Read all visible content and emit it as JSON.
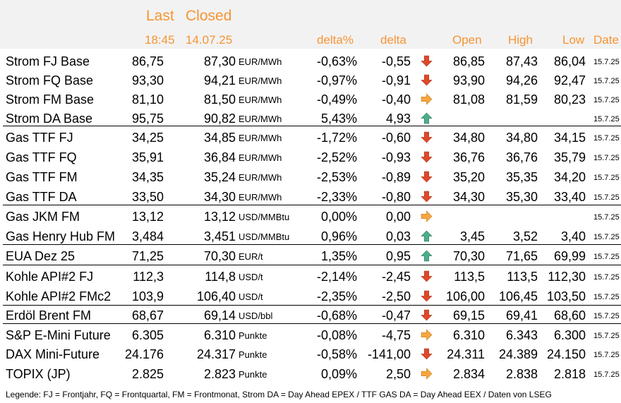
{
  "header": {
    "last_label": "Last",
    "closed_label": "Closed",
    "last_time": "18:45",
    "closed_date": "14.07.25",
    "delta_pct": "delta%",
    "delta": "delta",
    "open": "Open",
    "high": "High",
    "low": "Low",
    "date": "Date"
  },
  "colors": {
    "header": "#f79433",
    "down": "#e0482a",
    "side": "#f7a640",
    "up": "#4caf8a"
  },
  "rows": [
    {
      "name": "Strom FJ Base",
      "last": "86,75",
      "closed": "87,30",
      "unit": "EUR/MWh",
      "dpct": "-0,63%",
      "delta": "-0,55",
      "trend": "down",
      "open": "86,85",
      "high": "87,43",
      "low": "86,04",
      "date": "15.7.25"
    },
    {
      "name": "Strom FQ Base",
      "last": "93,30",
      "closed": "94,21",
      "unit": "EUR/MWh",
      "dpct": "-0,97%",
      "delta": "-0,91",
      "trend": "down",
      "open": "93,90",
      "high": "94,26",
      "low": "92,47",
      "date": "15.7.25"
    },
    {
      "name": "Strom FM Base",
      "last": "81,10",
      "closed": "81,50",
      "unit": "EUR/MWh",
      "dpct": "-0,49%",
      "delta": "-0,40",
      "trend": "side",
      "open": "81,08",
      "high": "81,59",
      "low": "80,23",
      "date": "15.7.25"
    },
    {
      "name": "Strom DA Base",
      "last": "95,75",
      "closed": "90,82",
      "unit": "EUR/MWh",
      "dpct": "5,43%",
      "delta": "4,93",
      "trend": "up",
      "open": "",
      "high": "",
      "low": "",
      "date": "15.7.25"
    },
    {
      "name": "Gas TTF FJ",
      "last": "34,25",
      "closed": "34,85",
      "unit": "EUR/MWh",
      "dpct": "-1,72%",
      "delta": "-0,60",
      "trend": "down",
      "open": "34,80",
      "high": "34,80",
      "low": "34,15",
      "date": "15.7.25"
    },
    {
      "name": "Gas TTF FQ",
      "last": "35,91",
      "closed": "36,84",
      "unit": "EUR/MWh",
      "dpct": "-2,52%",
      "delta": "-0,93",
      "trend": "down",
      "open": "36,76",
      "high": "36,76",
      "low": "35,79",
      "date": "15.7.25"
    },
    {
      "name": "Gas TTF FM",
      "last": "34,35",
      "closed": "35,24",
      "unit": "EUR/MWh",
      "dpct": "-2,53%",
      "delta": "-0,89",
      "trend": "down",
      "open": "35,20",
      "high": "35,35",
      "low": "34,20",
      "date": "15.7.25"
    },
    {
      "name": "Gas TTF DA",
      "last": "33,50",
      "closed": "34,30",
      "unit": "EUR/MWh",
      "dpct": "-2,33%",
      "delta": "-0,80",
      "trend": "down",
      "open": "34,30",
      "high": "35,30",
      "low": "33,40",
      "date": "15.7.25"
    },
    {
      "name": "Gas JKM FM",
      "last": "13,12",
      "closed": "13,12",
      "unit": "USD/MMBtu",
      "dpct": "0,00%",
      "delta": "0,00",
      "trend": "side",
      "open": "",
      "high": "",
      "low": "",
      "date": "15.7.25"
    },
    {
      "name": "Gas Henry Hub FM",
      "last": "3,484",
      "closed": "3,451",
      "unit": "USD/MMBtu",
      "dpct": "0,96%",
      "delta": "0,03",
      "trend": "up",
      "open": "3,45",
      "high": "3,52",
      "low": "3,40",
      "date": "15.7.25"
    },
    {
      "name": "EUA Dez 25",
      "last": "71,25",
      "closed": "70,30",
      "unit": "EUR/t",
      "dpct": "1,35%",
      "delta": "0,95",
      "trend": "up",
      "open": "70,30",
      "high": "71,65",
      "low": "69,99",
      "date": "15.7.25"
    },
    {
      "name": "Kohle API#2 FJ",
      "last": "112,3",
      "closed": "114,8",
      "unit": "USD/t",
      "dpct": "-2,14%",
      "delta": "-2,45",
      "trend": "down",
      "open": "113,5",
      "high": "113,5",
      "low": "112,30",
      "date": "15.7.25"
    },
    {
      "name": "Kohle API#2 FMc2",
      "last": "103,9",
      "closed": "106,40",
      "unit": "USD/t",
      "dpct": "-2,35%",
      "delta": "-2,50",
      "trend": "down",
      "open": "106,00",
      "high": "106,45",
      "low": "103,50",
      "date": "15.7.25"
    },
    {
      "name": "Erdöl Brent FM",
      "last": "68,67",
      "closed": "69,14",
      "unit": "USD/bbl",
      "dpct": "-0,68%",
      "delta": "-0,47",
      "trend": "down",
      "open": "69,15",
      "high": "69,41",
      "low": "68,60",
      "date": "15.7.25"
    },
    {
      "name": "S&P E-Mini Future",
      "last": "6.305",
      "closed": "6.310",
      "unit": "Punkte",
      "dpct": "-0,08%",
      "delta": "-4,75",
      "trend": "side",
      "open": "6.310",
      "high": "6.343",
      "low": "6.300",
      "date": "15.7.25"
    },
    {
      "name": "DAX Mini-Future",
      "last": "24.176",
      "closed": "24.317",
      "unit": "Punkte",
      "dpct": "-0,58%",
      "delta": "-141,00",
      "trend": "down",
      "open": "24.311",
      "high": "24.389",
      "low": "24.150",
      "date": "15.7.25"
    },
    {
      "name": "TOPIX (JP)",
      "last": "2.825",
      "closed": "2.823",
      "unit": "Punkte",
      "dpct": "0,09%",
      "delta": "2,50",
      "trend": "side",
      "open": "2.834",
      "high": "2.838",
      "low": "2.818",
      "date": "15.7.25"
    }
  ],
  "legend": "Legende: FJ = Frontjahr, FQ = Frontquartal, FM = Frontmonat, Strom DA = Day Ahead EPEX / TTF GAS DA = Day Ahead EEX / Daten von LSEG"
}
